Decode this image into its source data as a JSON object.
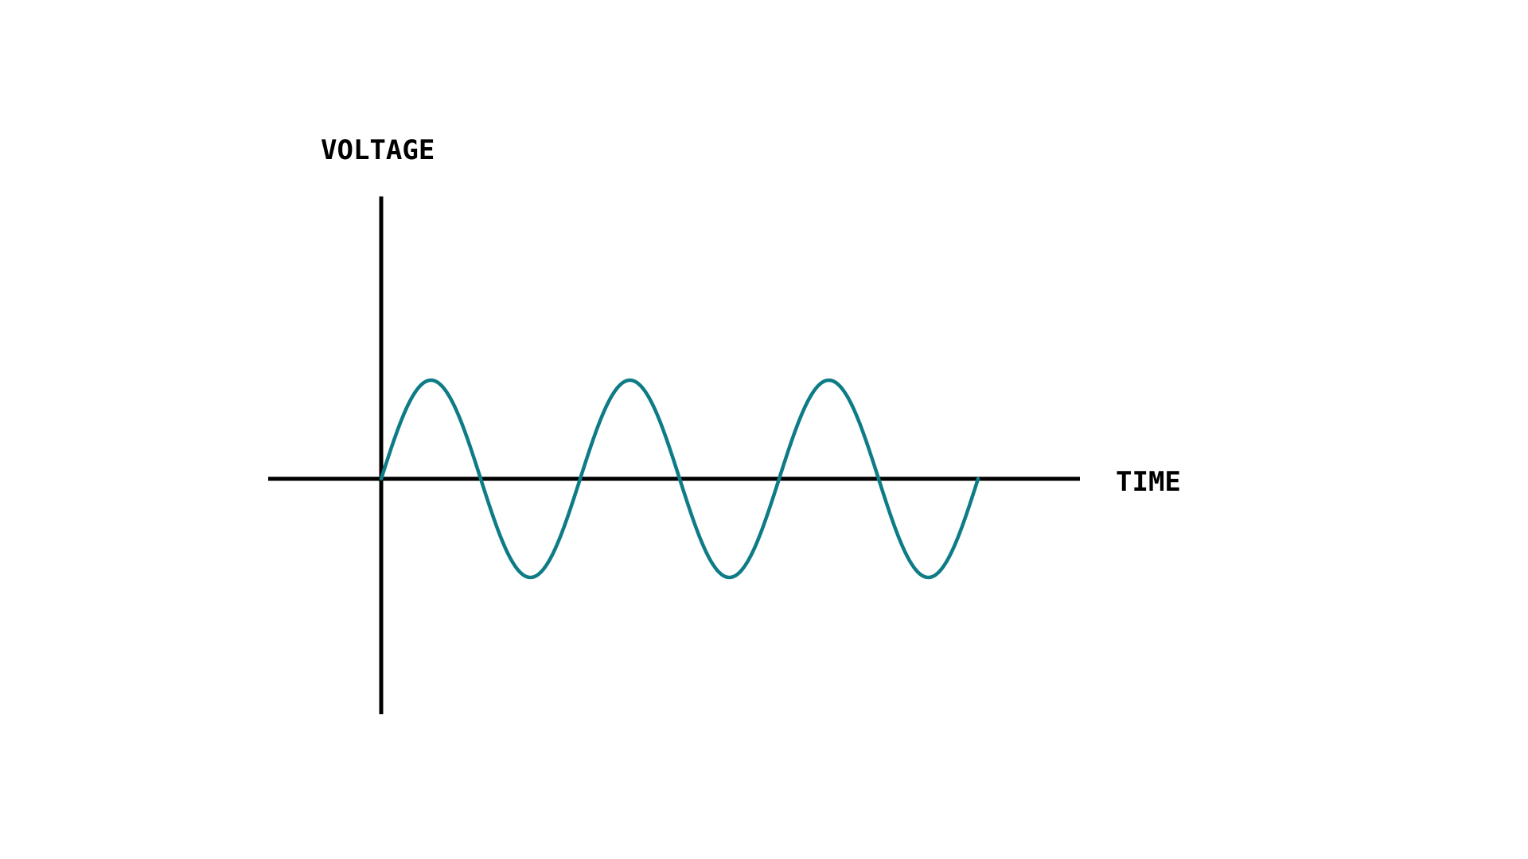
{
  "chart_data": {
    "type": "line",
    "title": "",
    "xlabel": "TIME",
    "ylabel": "VOLTAGE",
    "grid": false,
    "ticks": false,
    "series": [
      {
        "function": "sine",
        "amplitude": 1,
        "cycles": 3,
        "phase": 0,
        "color": "#0e7c86"
      }
    ],
    "xlim": [
      0,
      3
    ],
    "ylim": [
      -1,
      1
    ],
    "axis_color": "#000000"
  }
}
